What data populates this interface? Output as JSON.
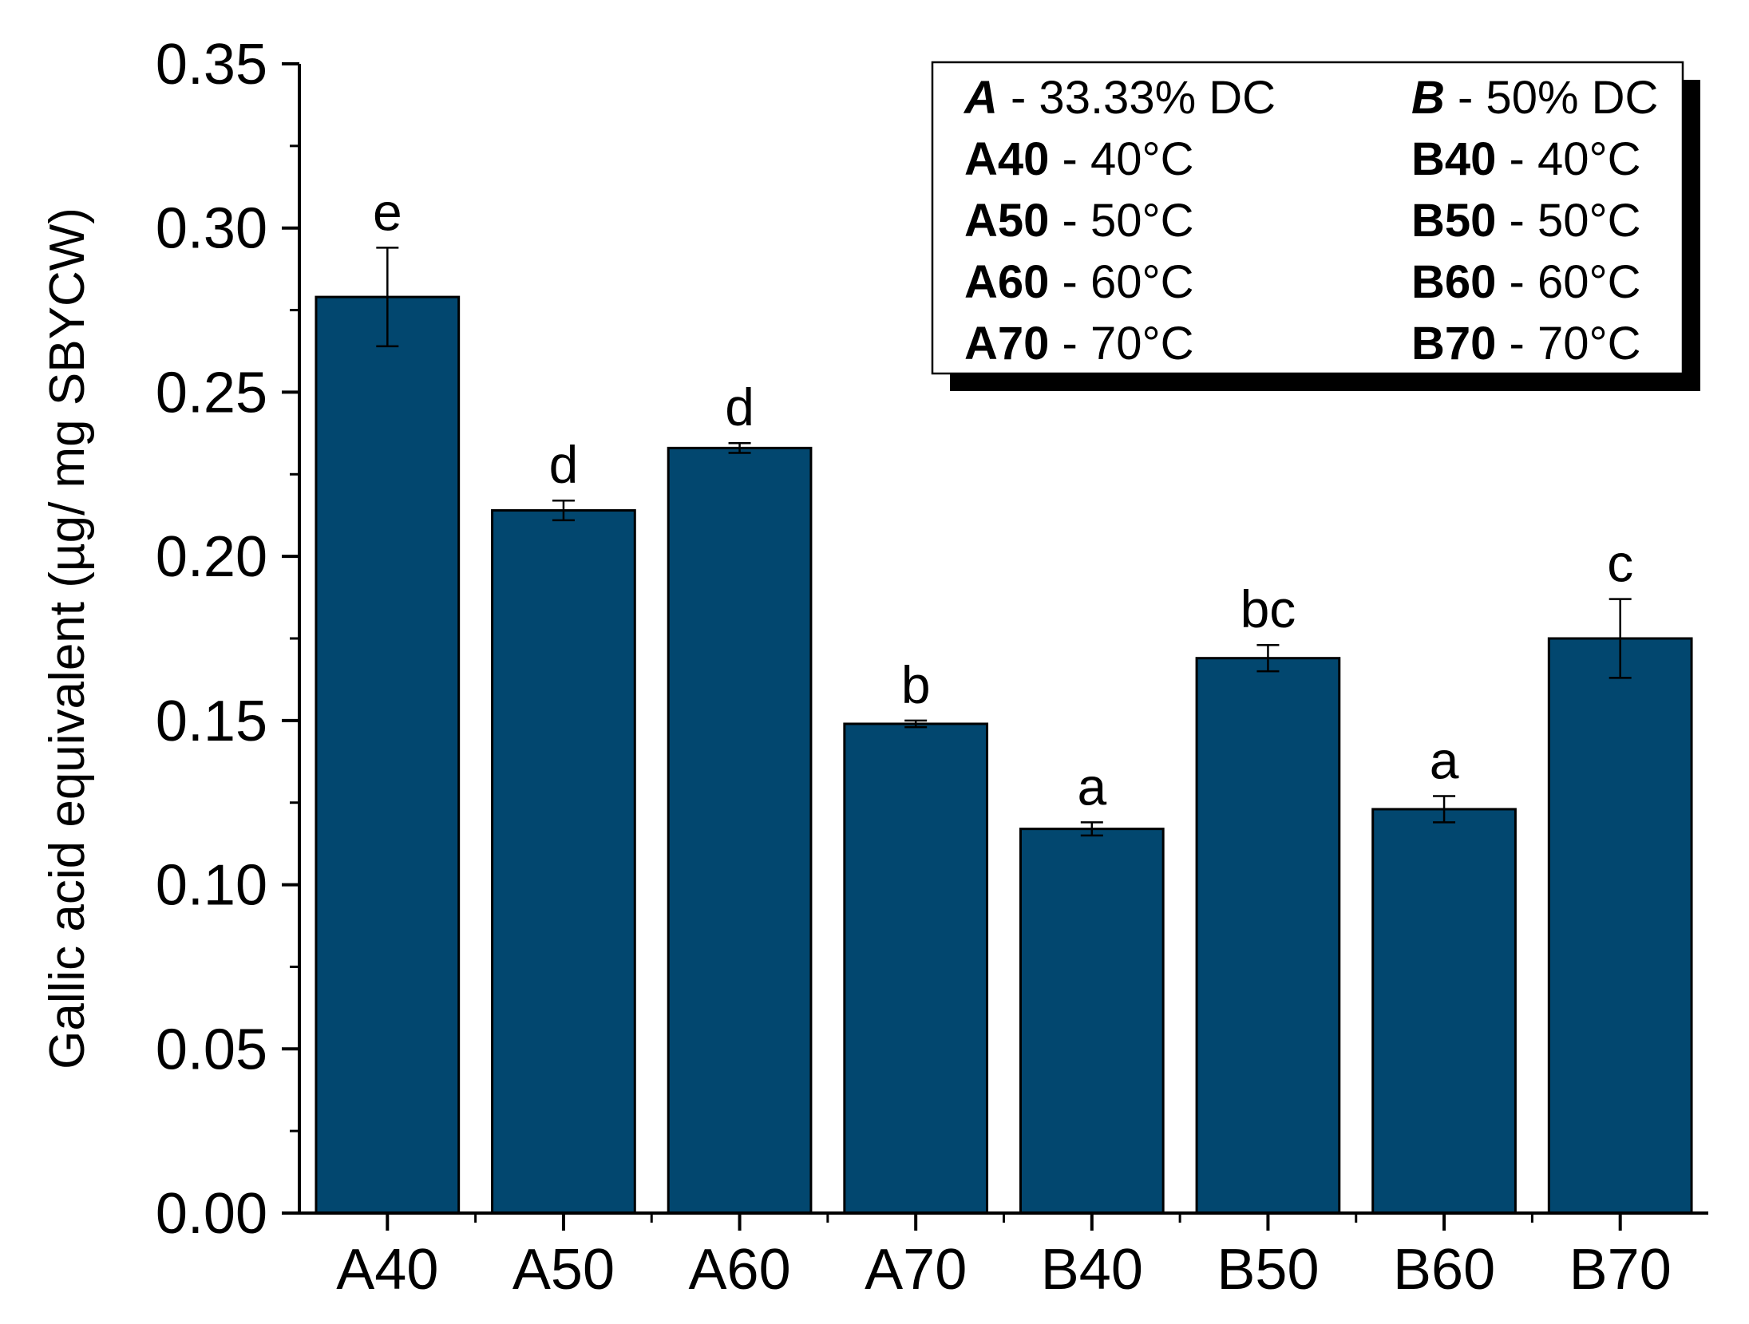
{
  "chart_data": {
    "type": "bar",
    "categories": [
      "A40",
      "A50",
      "A60",
      "A70",
      "B40",
      "B50",
      "B60",
      "B70"
    ],
    "values": [
      0.279,
      0.214,
      0.233,
      0.149,
      0.117,
      0.169,
      0.123,
      0.175
    ],
    "errors": [
      0.015,
      0.003,
      0.0015,
      0.001,
      0.002,
      0.004,
      0.004,
      0.012
    ],
    "significance_labels": [
      "e",
      "d",
      "d",
      "b",
      "a",
      "bc",
      "a",
      "c"
    ],
    "ylabel": "Gallic acid equivalent (µg/ mg SBYCW)",
    "xlabel": "",
    "ylim": [
      0,
      0.35
    ],
    "yticks": [
      "0.00",
      "0.05",
      "0.10",
      "0.15",
      "0.20",
      "0.25",
      "0.30",
      "0.35"
    ],
    "bar_color": "#02476f",
    "grid": false,
    "legend_position": "top-right",
    "legend": {
      "left_column": [
        {
          "key": "A",
          "desc": " - 33.33% DC",
          "style": "italic"
        },
        {
          "key": "A40",
          "desc": " - 40°C",
          "style": "bold"
        },
        {
          "key": "A50",
          "desc": " - 50°C",
          "style": "bold"
        },
        {
          "key": "A60",
          "desc": " - 60°C",
          "style": "bold"
        },
        {
          "key": "A70",
          "desc": " - 70°C",
          "style": "bold"
        }
      ],
      "right_column": [
        {
          "key": "B",
          "desc": " - 50% DC",
          "style": "italic"
        },
        {
          "key": "B40",
          "desc": " - 40°C",
          "style": "bold"
        },
        {
          "key": "B50",
          "desc": " - 50°C",
          "style": "bold"
        },
        {
          "key": "B60",
          "desc": " - 60°C",
          "style": "bold"
        },
        {
          "key": "B70",
          "desc": " - 70°C",
          "style": "bold"
        }
      ]
    }
  }
}
